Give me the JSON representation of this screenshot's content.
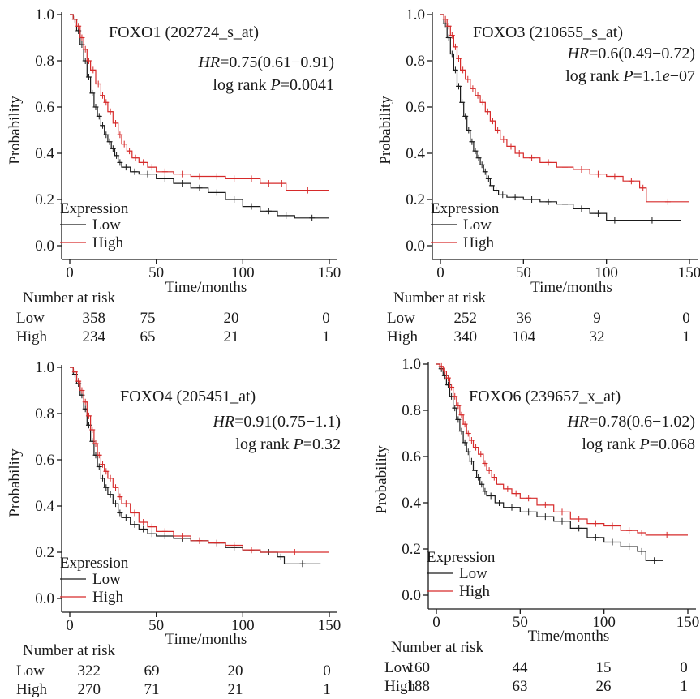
{
  "colors": {
    "low": "#1a1a1a",
    "high": "#d62a2a",
    "axis": "#1a1a1a",
    "text": "#1a1a1a"
  },
  "chart_data": [
    {
      "type": "line",
      "title": "FOXO1 (202724_s_at)",
      "hr_prefix": "HR",
      "hr_text": "=0.75(0.61−0.91)",
      "p_prefix": "log rank ",
      "p_symbol": "P",
      "p_value": "=0.0041",
      "xlabel": "Time/months",
      "ylabel": "Probability",
      "xlim": [
        0,
        150
      ],
      "ylim": [
        0,
        1
      ],
      "xticks": [
        "0",
        "50",
        "100",
        "150"
      ],
      "yticks": [
        "0.0",
        "0.2",
        "0.4",
        "0.6",
        "0.8",
        "1.0"
      ],
      "legend_title": "Expression",
      "legend": [
        "Low",
        "High"
      ],
      "risk_title": "Number at risk",
      "risk": [
        {
          "group": "Low",
          "counts": [
            "358",
            "75",
            "20",
            "0"
          ]
        },
        {
          "group": "High",
          "counts": [
            "234",
            "65",
            "21",
            "1"
          ]
        }
      ],
      "series": [
        {
          "name": "Low",
          "points": [
            [
              0,
              1.0
            ],
            [
              2,
              0.98
            ],
            [
              4,
              0.93
            ],
            [
              6,
              0.87
            ],
            [
              8,
              0.8
            ],
            [
              10,
              0.73
            ],
            [
              12,
              0.66
            ],
            [
              14,
              0.6
            ],
            [
              16,
              0.56
            ],
            [
              18,
              0.52
            ],
            [
              20,
              0.48
            ],
            [
              22,
              0.45
            ],
            [
              24,
              0.42
            ],
            [
              26,
              0.39
            ],
            [
              28,
              0.36
            ],
            [
              30,
              0.34
            ],
            [
              35,
              0.32
            ],
            [
              40,
              0.31
            ],
            [
              50,
              0.29
            ],
            [
              60,
              0.27
            ],
            [
              70,
              0.25
            ],
            [
              80,
              0.23
            ],
            [
              90,
              0.2
            ],
            [
              100,
              0.17
            ],
            [
              110,
              0.15
            ],
            [
              120,
              0.13
            ],
            [
              130,
              0.12
            ],
            [
              150,
              0.12
            ]
          ]
        },
        {
          "name": "High",
          "points": [
            [
              0,
              1.0
            ],
            [
              2,
              0.98
            ],
            [
              4,
              0.95
            ],
            [
              6,
              0.9
            ],
            [
              8,
              0.85
            ],
            [
              10,
              0.8
            ],
            [
              12,
              0.76
            ],
            [
              15,
              0.7
            ],
            [
              18,
              0.65
            ],
            [
              20,
              0.62
            ],
            [
              22,
              0.58
            ],
            [
              25,
              0.53
            ],
            [
              28,
              0.48
            ],
            [
              30,
              0.44
            ],
            [
              33,
              0.41
            ],
            [
              36,
              0.38
            ],
            [
              40,
              0.36
            ],
            [
              45,
              0.34
            ],
            [
              50,
              0.32
            ],
            [
              60,
              0.31
            ],
            [
              70,
              0.3
            ],
            [
              80,
              0.3
            ],
            [
              90,
              0.29
            ],
            [
              100,
              0.29
            ],
            [
              110,
              0.27
            ],
            [
              120,
              0.27
            ],
            [
              125,
              0.24
            ],
            [
              150,
              0.24
            ]
          ]
        }
      ]
    },
    {
      "type": "line",
      "title": "FOXO3 (210655_s_at)",
      "hr_prefix": "HR",
      "hr_text": "=0.6(0.49−0.72)",
      "p_prefix": "log rank ",
      "p_symbol": "P",
      "p_value": "=1.1",
      "p_exp_italic": "e",
      "p_exp": "−07",
      "xlabel": "Time/months",
      "ylabel": "Probability",
      "xlim": [
        0,
        150
      ],
      "ylim": [
        0,
        1
      ],
      "xticks": [
        "0",
        "50",
        "100",
        "150"
      ],
      "yticks": [
        "0.0",
        "0.2",
        "0.4",
        "0.6",
        "0.8",
        "1.0"
      ],
      "legend_title": "Expression",
      "legend": [
        "Low",
        "High"
      ],
      "risk_title": "Number at risk",
      "risk": [
        {
          "group": "Low",
          "counts": [
            "252",
            "36",
            "9",
            "0"
          ]
        },
        {
          "group": "High",
          "counts": [
            "340",
            "104",
            "32",
            "1"
          ]
        }
      ],
      "series": [
        {
          "name": "Low",
          "points": [
            [
              0,
              1.0
            ],
            [
              2,
              0.96
            ],
            [
              4,
              0.9
            ],
            [
              6,
              0.83
            ],
            [
              8,
              0.76
            ],
            [
              10,
              0.69
            ],
            [
              12,
              0.62
            ],
            [
              14,
              0.56
            ],
            [
              16,
              0.5
            ],
            [
              18,
              0.45
            ],
            [
              20,
              0.41
            ],
            [
              22,
              0.38
            ],
            [
              24,
              0.35
            ],
            [
              26,
              0.32
            ],
            [
              28,
              0.29
            ],
            [
              30,
              0.26
            ],
            [
              32,
              0.24
            ],
            [
              35,
              0.22
            ],
            [
              40,
              0.21
            ],
            [
              50,
              0.2
            ],
            [
              60,
              0.19
            ],
            [
              70,
              0.18
            ],
            [
              80,
              0.16
            ],
            [
              90,
              0.14
            ],
            [
              100,
              0.11
            ],
            [
              110,
              0.11
            ],
            [
              145,
              0.11
            ]
          ]
        },
        {
          "name": "High",
          "points": [
            [
              0,
              1.0
            ],
            [
              2,
              0.98
            ],
            [
              4,
              0.95
            ],
            [
              6,
              0.91
            ],
            [
              8,
              0.86
            ],
            [
              10,
              0.81
            ],
            [
              12,
              0.76
            ],
            [
              15,
              0.72
            ],
            [
              18,
              0.68
            ],
            [
              21,
              0.65
            ],
            [
              24,
              0.62
            ],
            [
              27,
              0.58
            ],
            [
              30,
              0.54
            ],
            [
              33,
              0.5
            ],
            [
              36,
              0.46
            ],
            [
              40,
              0.43
            ],
            [
              45,
              0.4
            ],
            [
              50,
              0.38
            ],
            [
              60,
              0.36
            ],
            [
              70,
              0.34
            ],
            [
              80,
              0.33
            ],
            [
              90,
              0.31
            ],
            [
              100,
              0.3
            ],
            [
              110,
              0.28
            ],
            [
              120,
              0.25
            ],
            [
              124,
              0.19
            ],
            [
              150,
              0.19
            ]
          ]
        }
      ]
    },
    {
      "type": "line",
      "title": "FOXO4 (205451_at)",
      "hr_prefix": "HR",
      "hr_text": "=0.91(0.75−1.1)",
      "p_prefix": "log rank ",
      "p_symbol": "P",
      "p_value": "=0.32",
      "xlabel": "Time/months",
      "ylabel": "Probability",
      "xlim": [
        0,
        150
      ],
      "ylim": [
        0,
        1
      ],
      "xticks": [
        "0",
        "50",
        "100",
        "150"
      ],
      "yticks": [
        "0.0",
        "0.2",
        "0.4",
        "0.6",
        "0.8",
        "1.0"
      ],
      "legend_title": "Expression",
      "legend": [
        "Low",
        "High"
      ],
      "risk_title": "Number at risk",
      "risk": [
        {
          "group": "Low",
          "counts": [
            "322",
            "69",
            "20",
            "0"
          ]
        },
        {
          "group": "High",
          "counts": [
            "270",
            "71",
            "21",
            "1"
          ]
        }
      ],
      "series": [
        {
          "name": "Low",
          "points": [
            [
              0,
              1.0
            ],
            [
              2,
              0.97
            ],
            [
              4,
              0.93
            ],
            [
              6,
              0.88
            ],
            [
              8,
              0.82
            ],
            [
              10,
              0.75
            ],
            [
              12,
              0.68
            ],
            [
              14,
              0.62
            ],
            [
              16,
              0.57
            ],
            [
              18,
              0.52
            ],
            [
              20,
              0.48
            ],
            [
              22,
              0.45
            ],
            [
              25,
              0.41
            ],
            [
              28,
              0.37
            ],
            [
              30,
              0.35
            ],
            [
              35,
              0.32
            ],
            [
              40,
              0.3
            ],
            [
              45,
              0.28
            ],
            [
              50,
              0.27
            ],
            [
              60,
              0.26
            ],
            [
              70,
              0.25
            ],
            [
              80,
              0.24
            ],
            [
              90,
              0.22
            ],
            [
              100,
              0.21
            ],
            [
              110,
              0.2
            ],
            [
              120,
              0.18
            ],
            [
              124,
              0.15
            ],
            [
              145,
              0.15
            ]
          ]
        },
        {
          "name": "High",
          "points": [
            [
              0,
              1.0
            ],
            [
              2,
              0.98
            ],
            [
              4,
              0.94
            ],
            [
              6,
              0.9
            ],
            [
              8,
              0.85
            ],
            [
              10,
              0.79
            ],
            [
              12,
              0.73
            ],
            [
              14,
              0.67
            ],
            [
              16,
              0.62
            ],
            [
              18,
              0.58
            ],
            [
              20,
              0.55
            ],
            [
              22,
              0.52
            ],
            [
              25,
              0.48
            ],
            [
              28,
              0.44
            ],
            [
              30,
              0.41
            ],
            [
              35,
              0.37
            ],
            [
              40,
              0.33
            ],
            [
              45,
              0.31
            ],
            [
              50,
              0.29
            ],
            [
              60,
              0.27
            ],
            [
              70,
              0.25
            ],
            [
              80,
              0.24
            ],
            [
              90,
              0.23
            ],
            [
              100,
              0.21
            ],
            [
              110,
              0.2
            ],
            [
              150,
              0.2
            ]
          ]
        }
      ]
    },
    {
      "type": "line",
      "title": "FOXO6 (239657_x_at)",
      "hr_prefix": "HR",
      "hr_text": "=0.78(0.6−1.02)",
      "p_prefix": "log rank ",
      "p_symbol": "P",
      "p_value": "=0.068",
      "xlabel": "Time/months",
      "ylabel": "Probability",
      "xlim": [
        0,
        150
      ],
      "ylim": [
        0,
        1
      ],
      "xticks": [
        "0",
        "50",
        "100",
        "150"
      ],
      "yticks": [
        "0.0",
        "0.2",
        "0.4",
        "0.6",
        "0.8",
        "1.0"
      ],
      "legend_title": "Expression",
      "legend": [
        "Low",
        "High"
      ],
      "risk_title": "Number at risk",
      "risk": [
        {
          "group": "Low",
          "counts": [
            "160",
            "44",
            "15",
            "0"
          ]
        },
        {
          "group": "High",
          "counts": [
            "188",
            "63",
            "26",
            "1"
          ]
        }
      ],
      "series": [
        {
          "name": "Low",
          "points": [
            [
              0,
              1.0
            ],
            [
              2,
              0.98
            ],
            [
              4,
              0.95
            ],
            [
              6,
              0.91
            ],
            [
              8,
              0.86
            ],
            [
              10,
              0.81
            ],
            [
              12,
              0.76
            ],
            [
              14,
              0.71
            ],
            [
              16,
              0.66
            ],
            [
              18,
              0.62
            ],
            [
              20,
              0.58
            ],
            [
              22,
              0.54
            ],
            [
              24,
              0.51
            ],
            [
              26,
              0.48
            ],
            [
              28,
              0.45
            ],
            [
              30,
              0.43
            ],
            [
              35,
              0.4
            ],
            [
              40,
              0.38
            ],
            [
              50,
              0.36
            ],
            [
              60,
              0.34
            ],
            [
              70,
              0.32
            ],
            [
              80,
              0.29
            ],
            [
              90,
              0.25
            ],
            [
              100,
              0.23
            ],
            [
              110,
              0.21
            ],
            [
              120,
              0.19
            ],
            [
              125,
              0.15
            ],
            [
              135,
              0.15
            ]
          ]
        },
        {
          "name": "High",
          "points": [
            [
              0,
              1.0
            ],
            [
              2,
              0.99
            ],
            [
              4,
              0.97
            ],
            [
              6,
              0.94
            ],
            [
              8,
              0.9
            ],
            [
              10,
              0.86
            ],
            [
              12,
              0.82
            ],
            [
              14,
              0.78
            ],
            [
              16,
              0.74
            ],
            [
              18,
              0.7
            ],
            [
              20,
              0.67
            ],
            [
              22,
              0.64
            ],
            [
              25,
              0.61
            ],
            [
              28,
              0.57
            ],
            [
              30,
              0.54
            ],
            [
              33,
              0.51
            ],
            [
              36,
              0.48
            ],
            [
              40,
              0.46
            ],
            [
              45,
              0.44
            ],
            [
              50,
              0.42
            ],
            [
              60,
              0.39
            ],
            [
              70,
              0.36
            ],
            [
              80,
              0.33
            ],
            [
              90,
              0.31
            ],
            [
              100,
              0.3
            ],
            [
              110,
              0.28
            ],
            [
              120,
              0.27
            ],
            [
              125,
              0.26
            ],
            [
              150,
              0.26
            ]
          ]
        }
      ]
    }
  ]
}
